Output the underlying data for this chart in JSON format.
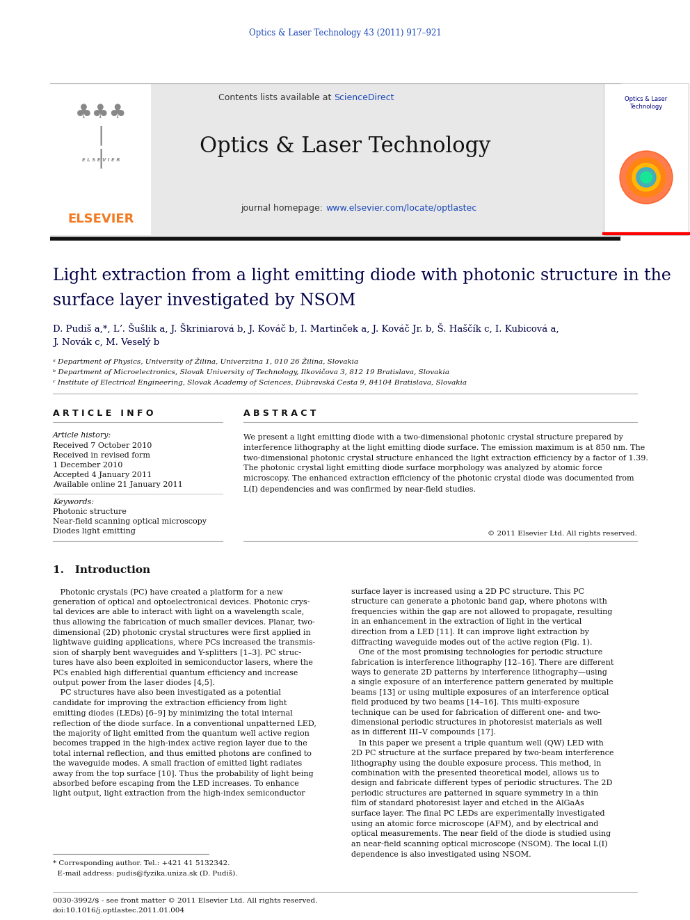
{
  "journal_ref": "Optics & Laser Technology 43 (2011) 917–921",
  "journal_name": "Optics & Laser Technology",
  "contents_pre": "Contents lists available at ",
  "sciencedirect": "ScienceDirect",
  "homepage_pre": "journal homepage: ",
  "homepage_url": "www.elsevier.com/locate/optlastec",
  "elsevier_text": "ELSEVIER",
  "title_line1": "Light extraction from a light emitting diode with photonic structure in the",
  "title_line2": "surface layer investigated by NSOM",
  "authors_line1": "D. Pudiš a,*, Lʼ. Šušlik a, J. Škriniarová b, J. Kováč b, I. Martinček a, J. Kováč Jr. b, Š. Haščík c, I. Kubicová a,",
  "authors_line2": "J. Novák c, M. Veselý b",
  "affil_a": "ᵃ Department of Physics, University of Žilina, Univerzitna 1, 010 26 Žilina, Slovakia",
  "affil_b": "ᵇ Department of Microelectronics, Slovak University of Technology, Ilkovičova 3, 812 19 Bratislava, Slovakia",
  "affil_c": "ᶜ Institute of Electrical Engineering, Slovak Academy of Sciences, Dúbravská Cesta 9, 84104 Bratislava, Slovakia",
  "article_info_title": "A R T I C L E   I N F O",
  "abstract_title": "A B S T R A C T",
  "article_history": "Article history:",
  "received1": "Received 7 October 2010",
  "received2": "Received in revised form",
  "received2b": "1 December 2010",
  "accepted": "Accepted 4 January 2011",
  "online": "Available online 21 January 2011",
  "keywords_title": "Keywords:",
  "keyword1": "Photonic structure",
  "keyword2": "Near-field scanning optical microscopy",
  "keyword3": "Diodes light emitting",
  "abstract_text": "We present a light emitting diode with a two-dimensional photonic crystal structure prepared by\ninterference lithography at the light emitting diode surface. The emission maximum is at 850 nm. The\ntwo-dimensional photonic crystal structure enhanced the light extraction efficiency by a factor of 1.39.\nThe photonic crystal light emitting diode surface morphology was analyzed by atomic force\nmicroscopy. The enhanced extraction efficiency of the photonic crystal diode was documented from\nL(I) dependencies and was confirmed by near-field studies.",
  "copyright": "© 2011 Elsevier Ltd. All rights reserved.",
  "intro_title": "1.   Introduction",
  "intro_col1": "   Photonic crystals (PC) have created a platform for a new\ngeneration of optical and optoelectronical devices. Photonic crys-\ntal devices are able to interact with light on a wavelength scale,\nthus allowing the fabrication of much smaller devices. Planar, two-\ndimensional (2D) photonic crystal structures were first applied in\nlightwave guiding applications, where PCs increased the transmis-\nsion of sharply bent waveguides and Y-splitters [1–3]. PC struc-\ntures have also been exploited in semiconductor lasers, where the\nPCs enabled high differential quantum efficiency and increase\noutput power from the laser diodes [4,5].\n   PC structures have also been investigated as a potential\ncandidate for improving the extraction efficiency from light\nemitting diodes (LEDs) [6–9] by minimizing the total internal\nreflection of the diode surface. In a conventional unpatterned LED,\nthe majority of light emitted from the quantum well active region\nbecomes trapped in the high-index active region layer due to the\ntotal internal reflection, and thus emitted photons are confined to\nthe waveguide modes. A small fraction of emitted light radiates\naway from the top surface [10]. Thus the probability of light being\nabsorbed before escaping from the LED increases. To enhance\nlight output, light extraction from the high-index semiconductor",
  "intro_col2": "surface layer is increased using a 2D PC structure. This PC\nstructure can generate a photonic band gap, where photons with\nfrequencies within the gap are not allowed to propagate, resulting\nin an enhancement in the extraction of light in the vertical\ndirection from a LED [11]. It can improve light extraction by\ndiffracting waveguide modes out of the active region (Fig. 1).\n   One of the most promising technologies for periodic structure\nfabrication is interference lithography [12–16]. There are different\nways to generate 2D patterns by interference lithography—using\na single exposure of an interference pattern generated by multiple\nbeams [13] or using multiple exposures of an interference optical\nfield produced by two beams [14–16]. This multi-exposure\ntechnique can be used for fabrication of different one- and two-\ndimensional periodic structures in photoresist materials as well\nas in different III–V compounds [17].\n   In this paper we present a triple quantum well (QW) LED with\n2D PC structure at the surface prepared by two-beam interference\nlithography using the double exposure process. This method, in\ncombination with the presented theoretical model, allows us to\ndesign and fabricate different types of periodic structures. The 2D\nperiodic structures are patterned in square symmetry in a thin\nfilm of standard photoresist layer and etched in the AlGaAs\nsurface layer. The final PC LEDs are experimentally investigated\nusing an atomic force microscope (AFM), and by electrical and\noptical measurements. The near field of the diode is studied using\nan near-field scanning optical microscope (NSOM). The local L(I)\ndependence is also investigated using NSOM.",
  "footnote1": "* Corresponding author. Tel.: +421 41 5132342.",
  "footnote2": "  E-mail address: pudis@fyzika.uniza.sk (D. Pudiš).",
  "footer1": "0030-3992/$ - see front matter © 2011 Elsevier Ltd. All rights reserved.",
  "footer2": "doi:10.1016/j.optlastec.2011.01.004",
  "bg_color": "#ffffff",
  "header_bg": "#e8e8e8",
  "link_color": "#1a47b8",
  "elsevier_orange": "#f47920",
  "title_color": "#000044",
  "text_color": "#111111"
}
